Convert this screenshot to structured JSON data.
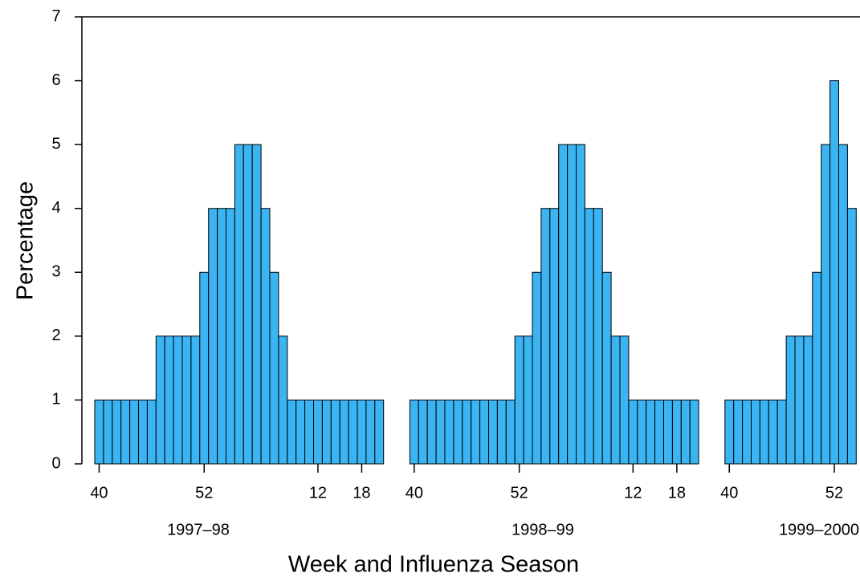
{
  "chart_data": {
    "type": "bar",
    "x_label": "Week and Influenza Season",
    "y_label": "Percentage",
    "color": "#3ab4f2",
    "ylim": [
      0,
      7
    ],
    "yticks": [
      0,
      1,
      2,
      3,
      4,
      5,
      6,
      7
    ],
    "groups": [
      {
        "name": "1997–98",
        "categories": [
          "40",
          null,
          null,
          null,
          null,
          null,
          null,
          null,
          null,
          null,
          null,
          null,
          "52",
          null,
          null,
          null,
          null,
          null,
          null,
          null,
          null,
          null,
          null,
          null,
          null,
          "12",
          null,
          null,
          null,
          null,
          "18",
          null,
          null
        ],
        "values": [
          1,
          1,
          1,
          1,
          1,
          1,
          1,
          2,
          2,
          2,
          2,
          2,
          3,
          4,
          4,
          4,
          5,
          5,
          5,
          4,
          3,
          2,
          1,
          1,
          1,
          1,
          1,
          1,
          1,
          1,
          1,
          1,
          1
        ]
      },
      {
        "name": "1998–99",
        "categories": [
          "40",
          null,
          null,
          null,
          null,
          null,
          null,
          null,
          null,
          null,
          null,
          null,
          "52",
          null,
          null,
          null,
          null,
          null,
          null,
          null,
          null,
          null,
          null,
          null,
          null,
          "12",
          null,
          null,
          null,
          null,
          "18",
          null,
          null
        ],
        "values": [
          1,
          1,
          1,
          1,
          1,
          1,
          1,
          1,
          1,
          1,
          1,
          1,
          2,
          2,
          3,
          4,
          4,
          5,
          5,
          5,
          4,
          4,
          3,
          2,
          2,
          1,
          1,
          1,
          1,
          1,
          1,
          1,
          1
        ]
      },
      {
        "name": "1999–2000",
        "categories": [
          "40",
          null,
          null,
          null,
          null,
          null,
          null,
          null,
          null,
          null,
          null,
          null,
          "52",
          null,
          null
        ],
        "values": [
          1,
          1,
          1,
          1,
          1,
          1,
          1,
          2,
          2,
          2,
          3,
          5,
          6,
          5,
          4
        ]
      }
    ]
  }
}
